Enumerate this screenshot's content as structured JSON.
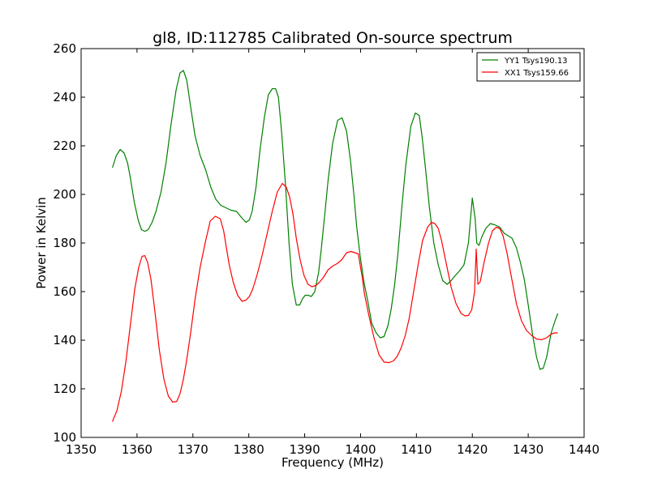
{
  "chart_data": {
    "type": "line",
    "title": "gl8, ID:112785 Calibrated On-source spectrum",
    "xlabel": "Frequency (MHz)",
    "ylabel": "Power in Kelvin",
    "xlim": [
      1350,
      1440
    ],
    "ylim": [
      100,
      260
    ],
    "xticks": [
      1350,
      1360,
      1370,
      1380,
      1390,
      1400,
      1410,
      1420,
      1430,
      1440
    ],
    "yticks": [
      100,
      120,
      140,
      160,
      180,
      200,
      220,
      240,
      260
    ],
    "grid": false,
    "legend_position": "top-right",
    "series": [
      {
        "name": "YY1 Tsys190.13",
        "color": "#008000",
        "x": [
          1355.6,
          1356.3,
          1357.0,
          1357.7,
          1358.3,
          1358.8,
          1359.5,
          1360.2,
          1360.8,
          1361.4,
          1362.0,
          1362.7,
          1363.4,
          1364.3,
          1365.2,
          1366.1,
          1367.0,
          1367.7,
          1368.3,
          1368.9,
          1369.6,
          1370.4,
          1371.3,
          1372.3,
          1373.2,
          1374.1,
          1375.0,
          1375.9,
          1376.8,
          1377.8,
          1378.7,
          1379.5,
          1380.1,
          1380.6,
          1381.3,
          1382.0,
          1382.8,
          1383.5,
          1384.2,
          1384.8,
          1385.3,
          1385.9,
          1386.6,
          1387.2,
          1387.8,
          1388.5,
          1389.1,
          1389.6,
          1390.1,
          1390.6,
          1391.2,
          1391.8,
          1392.5,
          1393.0,
          1393.6,
          1394.2,
          1395.0,
          1395.9,
          1396.7,
          1397.5,
          1398.2,
          1398.8,
          1399.3,
          1399.9,
          1400.6,
          1401.3,
          1402.0,
          1402.8,
          1403.5,
          1404.2,
          1404.9,
          1405.5,
          1406.1,
          1406.7,
          1407.4,
          1408.1,
          1409.0,
          1409.8,
          1410.5,
          1411.0,
          1411.6,
          1412.3,
          1413.1,
          1413.9,
          1414.7,
          1415.5,
          1416.2,
          1416.9,
          1417.7,
          1418.5,
          1419.3,
          1420.0,
          1420.5,
          1420.8,
          1421.2,
          1421.7,
          1422.4,
          1423.2,
          1424.0,
          1424.9,
          1425.7,
          1426.4,
          1427.1,
          1427.9,
          1428.6,
          1429.3,
          1430.1,
          1430.8,
          1431.5,
          1432.1,
          1432.7,
          1433.3,
          1434.1,
          1434.8,
          1435.3
        ],
        "y": [
          211,
          216,
          218.5,
          217,
          213,
          207,
          197,
          189.5,
          185.5,
          184.8,
          185.5,
          188.5,
          193,
          201,
          213,
          229,
          243,
          250,
          251,
          247,
          236,
          224,
          216,
          210,
          203,
          198,
          195.5,
          194.5,
          193.5,
          193,
          190.5,
          188.5,
          189.5,
          193,
          203,
          218,
          232,
          241,
          243.5,
          243.5,
          240,
          225,
          203,
          180,
          163,
          154.5,
          154.5,
          157,
          158.5,
          158.5,
          158,
          160,
          168,
          178,
          192,
          206,
          221,
          230.5,
          231.5,
          226,
          214,
          200,
          187,
          175,
          164,
          156,
          147,
          143,
          141,
          141.5,
          146,
          153,
          163,
          176,
          195,
          212,
          228,
          233.5,
          232.5,
          224,
          211,
          195,
          180,
          171,
          164.5,
          163,
          164.5,
          166.5,
          168.5,
          171,
          180,
          198.5,
          190,
          180,
          179,
          182.5,
          186,
          188,
          187.5,
          186.5,
          184,
          183,
          182,
          178,
          172,
          165,
          153,
          142,
          133,
          128,
          128.5,
          133,
          143,
          148,
          151
        ]
      },
      {
        "name": "XX1 Tsys159.66",
        "color": "#ff0000",
        "x": [
          1355.6,
          1356.4,
          1357.2,
          1358.0,
          1358.8,
          1359.6,
          1360.3,
          1360.9,
          1361.4,
          1361.9,
          1362.5,
          1363.2,
          1364.0,
          1364.8,
          1365.6,
          1366.4,
          1367.1,
          1367.7,
          1368.3,
          1368.9,
          1369.6,
          1370.4,
          1371.3,
          1372.2,
          1373.1,
          1374.0,
          1374.9,
          1375.5,
          1376.0,
          1376.5,
          1377.2,
          1378.0,
          1378.8,
          1379.5,
          1380.1,
          1380.7,
          1381.5,
          1382.4,
          1383.3,
          1384.2,
          1385.1,
          1386.0,
          1386.7,
          1387.3,
          1387.9,
          1388.5,
          1389.2,
          1389.9,
          1390.6,
          1391.3,
          1392.0,
          1392.7,
          1393.4,
          1394.2,
          1395.0,
          1395.8,
          1396.6,
          1397.5,
          1398.3,
          1399.0,
          1399.6,
          1400.0,
          1400.3,
          1400.7,
          1401.5,
          1402.4,
          1403.3,
          1404.2,
          1405.1,
          1405.9,
          1406.6,
          1407.3,
          1408.0,
          1408.7,
          1409.5,
          1410.3,
          1411.1,
          1412.0,
          1412.7,
          1413.3,
          1413.9,
          1414.5,
          1415.3,
          1416.2,
          1417.1,
          1418.0,
          1418.7,
          1419.3,
          1419.9,
          1420.4,
          1420.7,
          1421.0,
          1421.4,
          1422.1,
          1422.9,
          1423.6,
          1424.3,
          1424.9,
          1425.5,
          1426.2,
          1427.0,
          1427.9,
          1428.8,
          1429.7,
          1430.6,
          1431.5,
          1432.4,
          1433.3,
          1434.1,
          1434.7,
          1435.3
        ],
        "y": [
          106.5,
          111,
          119,
          131,
          146,
          161,
          170,
          174.5,
          174.8,
          172,
          165,
          152,
          136,
          124,
          117,
          114.5,
          114.8,
          118,
          124,
          132,
          143,
          157,
          170,
          180,
          189,
          191,
          190,
          185,
          178,
          171,
          164,
          158.5,
          156,
          156.5,
          158,
          161,
          167,
          175,
          184,
          193,
          201,
          204.5,
          203,
          199,
          192,
          182,
          173,
          166.5,
          163,
          162,
          162.5,
          164,
          166,
          169,
          170.5,
          171.5,
          173,
          176,
          176.5,
          176,
          175.5,
          170,
          166,
          159,
          150,
          141,
          134,
          131,
          130.8,
          131.5,
          133.5,
          137,
          142,
          149,
          160,
          171,
          181,
          186.5,
          188.5,
          188,
          186,
          181,
          172,
          162,
          155,
          151,
          150,
          150.2,
          152.5,
          160,
          177.5,
          163,
          164,
          172,
          180,
          185,
          186.5,
          186,
          183,
          176,
          166,
          155,
          148,
          144,
          142,
          140.5,
          140.2,
          141,
          142.5,
          143,
          143
        ]
      }
    ]
  }
}
